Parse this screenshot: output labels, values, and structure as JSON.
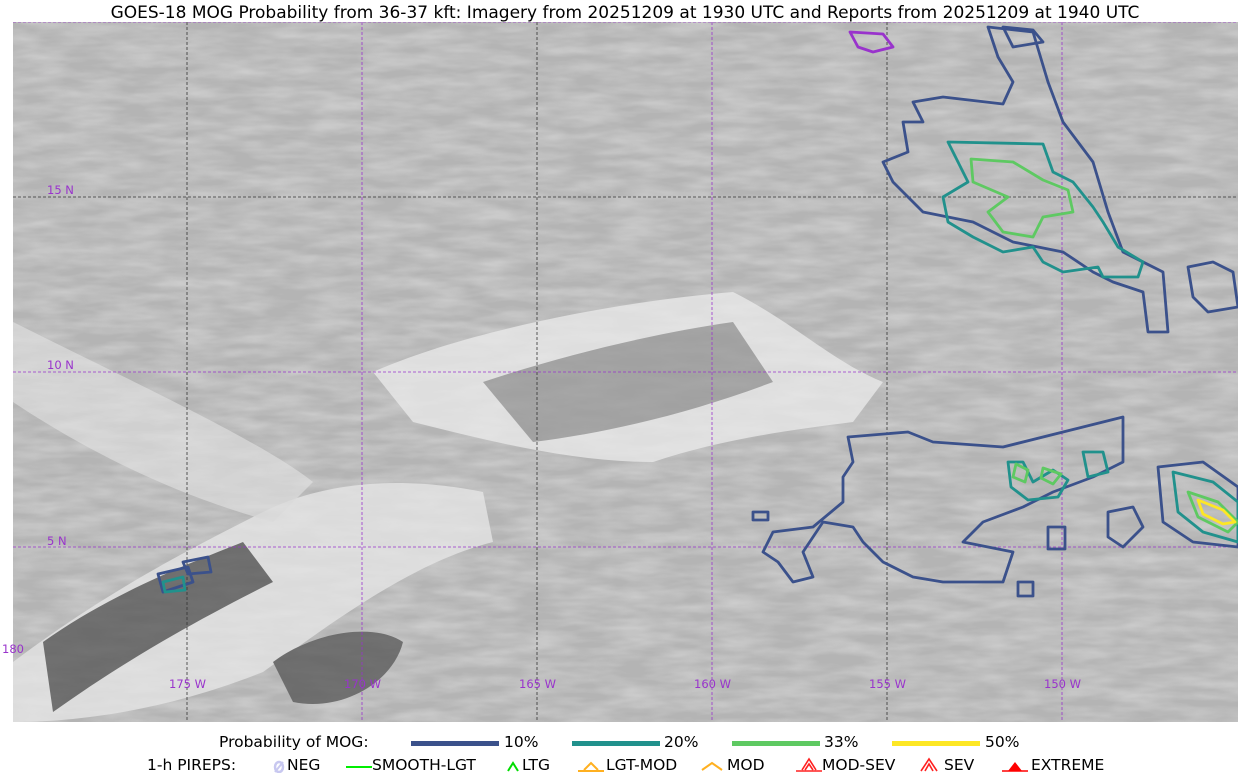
{
  "title": "GOES-18 MOG Probability from 36-37 kft: Imagery from 20251209 at 1930 UTC and Reports from 20251209 at 1940 UTC",
  "map": {
    "lat_labels": [
      "15 N",
      "10 N",
      "5 N"
    ],
    "lon_labels": [
      "180",
      "175 W",
      "170 W",
      "165 W",
      "160 W",
      "155 W",
      "150 W"
    ],
    "grid_color": "#9933cc"
  },
  "legend": {
    "prob_title": "Probability of MOG:",
    "prob_levels": [
      {
        "label": "10%",
        "color": "#3b518b"
      },
      {
        "label": "20%",
        "color": "#21918c"
      },
      {
        "label": "33%",
        "color": "#5ec962"
      },
      {
        "label": "50%",
        "color": "#fde725"
      }
    ],
    "pirep_title": "1-h PIREPS:",
    "pireps": [
      {
        "label": "NEG",
        "color": "#c8c8f0",
        "icon": "neg-slash-icon"
      },
      {
        "label": "SMOOTH-LGT",
        "color": "#00ee00",
        "icon": "line-icon"
      },
      {
        "label": "LTG",
        "color": "#00dd00",
        "icon": "caret-icon"
      },
      {
        "label": "LGT-MOD",
        "color": "#ffb020",
        "icon": "caret-bar-icon"
      },
      {
        "label": "MOD",
        "color": "#ffb020",
        "icon": "caret-icon"
      },
      {
        "label": "MOD-SEV",
        "color": "#ff2020",
        "icon": "double-caret-bar-icon"
      },
      {
        "label": "SEV",
        "color": "#ff2020",
        "icon": "double-caret-icon"
      },
      {
        "label": "EXTREME",
        "color": "#ff0000",
        "icon": "filled-triangle-icon"
      }
    ]
  }
}
